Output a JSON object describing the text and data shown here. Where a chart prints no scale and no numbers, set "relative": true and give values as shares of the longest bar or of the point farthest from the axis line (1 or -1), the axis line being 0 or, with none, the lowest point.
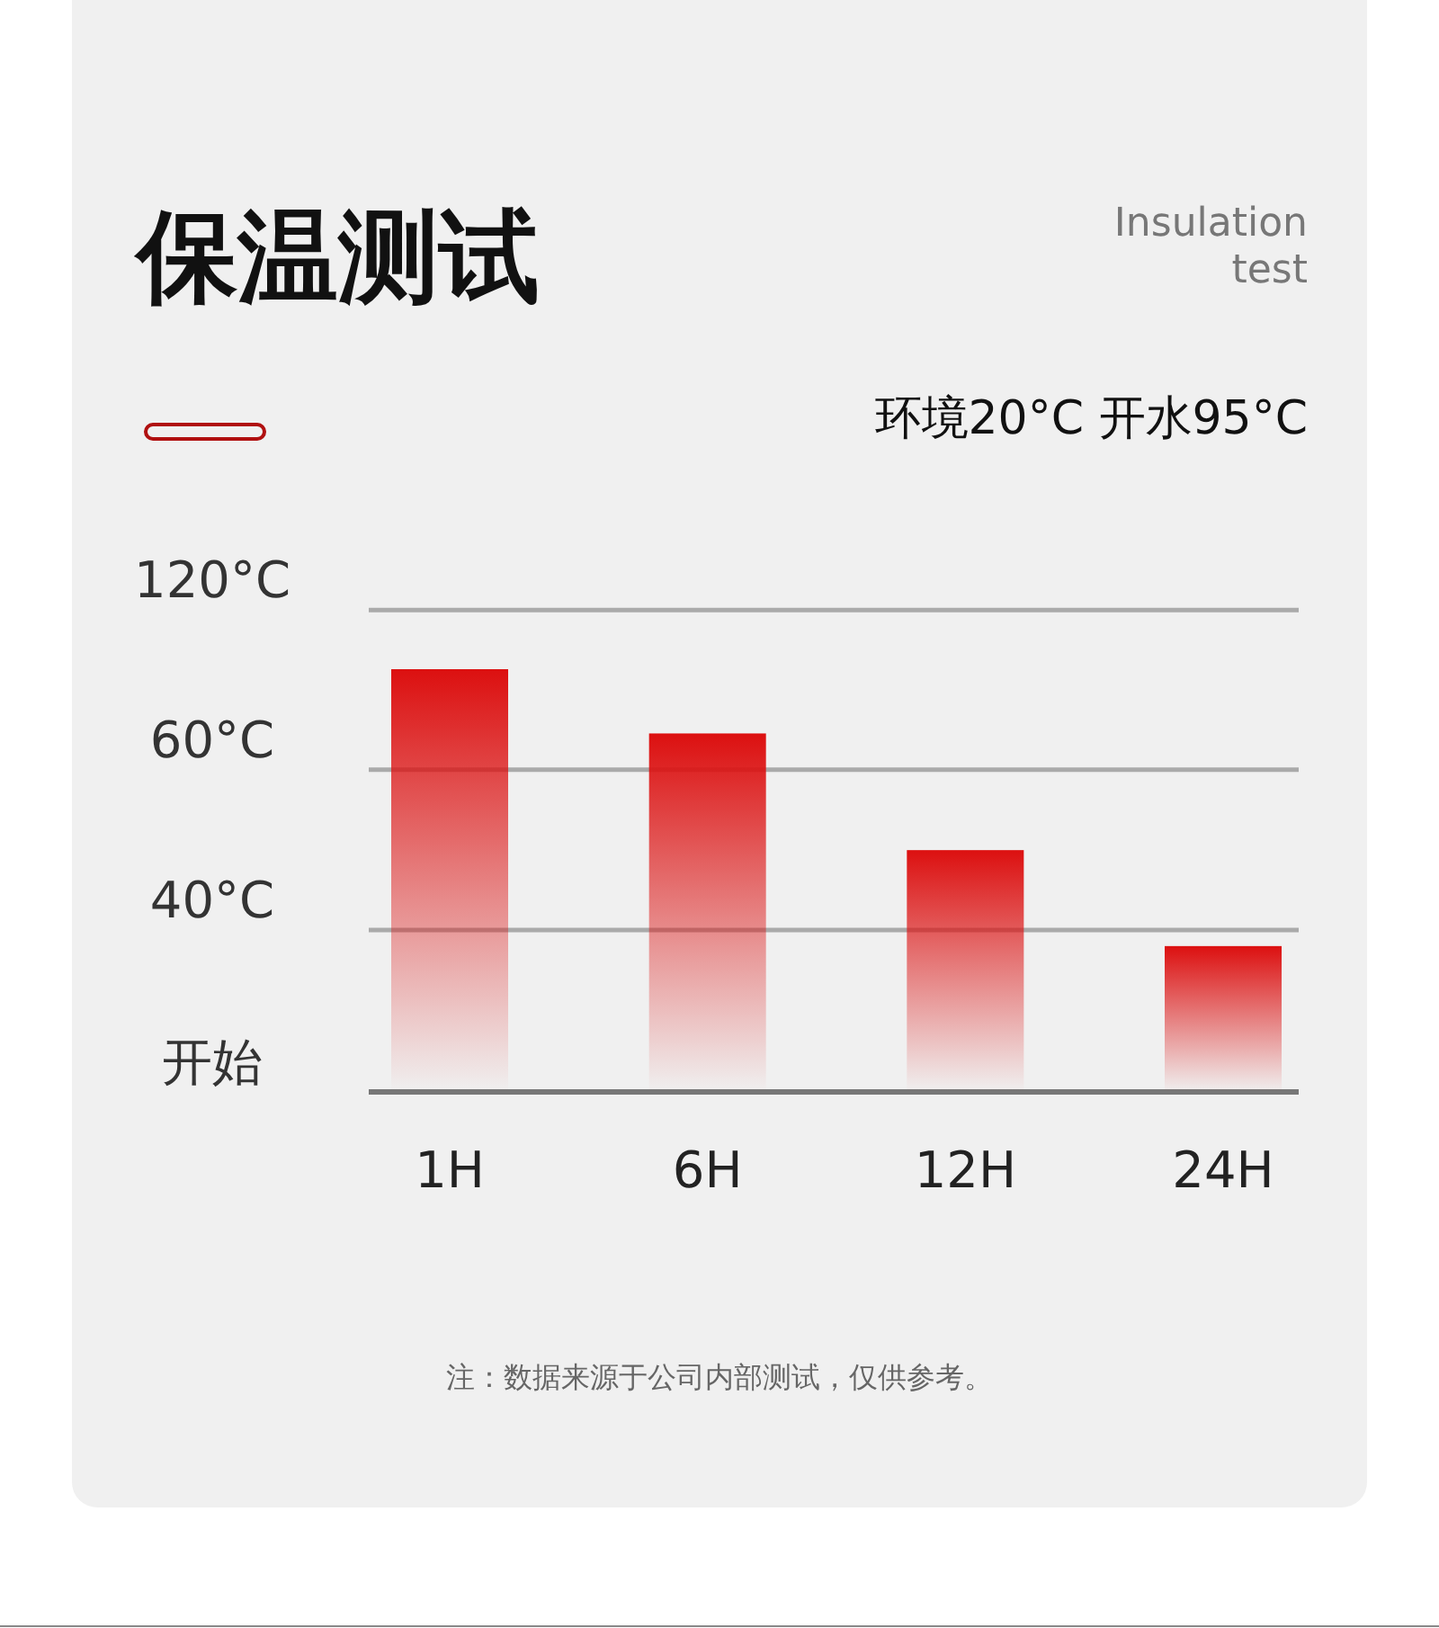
{
  "chart_data": {
    "type": "bar",
    "title": "保温测试",
    "subtitle": "Insulation test",
    "annotations": [
      "环境20°C 开水95°C",
      "注：数据来源于公司内部测试，仅供参考。",
      "开始"
    ],
    "categories": [
      "1H",
      "6H",
      "12H",
      "24H"
    ],
    "values": [
      1,
      0.848,
      0.572,
      0.345
    ],
    "relative": true,
    "color": "#dc1010",
    "ref_lines": [
      {
        "axis": "y",
        "value": 0.383,
        "label": "40°C",
        "color": "#aaaaaa"
      },
      {
        "axis": "y",
        "value": 0.762,
        "label": "60°C",
        "color": "#aaaaaa"
      },
      {
        "axis": "y",
        "value": 1.14,
        "label": "120°C",
        "color": "#aaaaaa"
      }
    ]
  }
}
